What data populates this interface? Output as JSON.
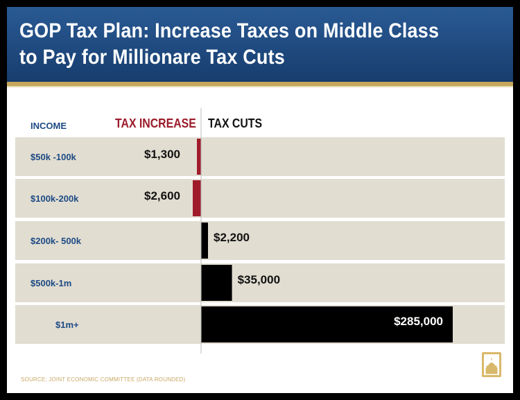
{
  "header": {
    "title_line1": "GOP Tax Plan: Increase Taxes on Middle Class",
    "title_line2": "to Pay for Millionare Tax Cuts"
  },
  "columns": {
    "income": "INCOME",
    "tax_increase": "TAX INCREASE",
    "tax_cuts": "TAX CUTS"
  },
  "source": "SOURCE: JOINT ECONOMIC COMMITTEE (DATA ROUNDED)",
  "colors": {
    "increase": "#a01b2a",
    "cut": "#000000",
    "row": "#e1ddd1",
    "income_label": "#1d4a84"
  },
  "icon": "capitol-logo-icon",
  "chart_data": {
    "type": "bar",
    "orientation": "horizontal-diverging",
    "categories": [
      "$50k -100k",
      "$100k-200k",
      "$200k- 500k",
      "$500k-1m",
      "$1m+"
    ],
    "series": [
      {
        "name": "TAX INCREASE",
        "values": [
          1300,
          2600,
          0,
          0,
          0
        ]
      },
      {
        "name": "TAX CUTS",
        "values": [
          0,
          0,
          2200,
          35000,
          285000
        ]
      }
    ],
    "value_labels": [
      "$1,300",
      "$2,600",
      "$2,200",
      "$35,000",
      "$285,000"
    ]
  }
}
